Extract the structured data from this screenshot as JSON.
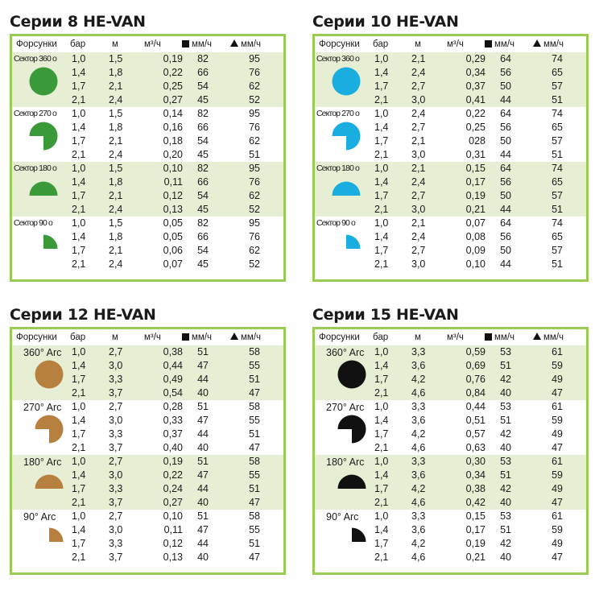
{
  "headers": {
    "nozzles": "Форсунки",
    "bar": "бар",
    "m": "м",
    "flow": "м³/ч",
    "precip_square": "мм/ч",
    "precip_triangle": "мм/ч"
  },
  "panels": [
    {
      "title": "Серии 8 HE-VAN",
      "color": "#3a9a3a",
      "label_style": "condensed",
      "groups": [
        {
          "label": "Сектор 360 o",
          "shape": "full",
          "rows": [
            [
              "1,0",
              "1,5",
              "0,19",
              "82",
              "95"
            ],
            [
              "1,4",
              "1,8",
              "0,22",
              "66",
              "76"
            ],
            [
              "1,7",
              "2,1",
              "0,25",
              "54",
              "62"
            ],
            [
              "2,1",
              "2,4",
              "0,27",
              "45",
              "52"
            ]
          ]
        },
        {
          "label": "Сектор 270 o",
          "shape": "three-quarter",
          "rows": [
            [
              "1,0",
              "1,5",
              "0,14",
              "82",
              "95"
            ],
            [
              "1,4",
              "1,8",
              "0,16",
              "66",
              "76"
            ],
            [
              "1,7",
              "2,1",
              "0,18",
              "54",
              "62"
            ],
            [
              "2,1",
              "2,4",
              "0,20",
              "45",
              "51"
            ]
          ]
        },
        {
          "label": "Сектор 180 o",
          "shape": "half",
          "rows": [
            [
              "1,0",
              "1,5",
              "0,10",
              "82",
              "95"
            ],
            [
              "1,4",
              "1,8",
              "0,11",
              "66",
              "76"
            ],
            [
              "1,7",
              "2,1",
              "0,12",
              "54",
              "62"
            ],
            [
              "2,1",
              "2,4",
              "0,13",
              "45",
              "52"
            ]
          ]
        },
        {
          "label": "Сектор 90 o",
          "shape": "quarter",
          "rows": [
            [
              "1,0",
              "1,5",
              "0,05",
              "82",
              "95"
            ],
            [
              "1,4",
              "1,8",
              "0,05",
              "66",
              "76"
            ],
            [
              "1,7",
              "2,1",
              "0,06",
              "54",
              "62"
            ],
            [
              "2,1",
              "2,4",
              "0,07",
              "45",
              "52"
            ]
          ]
        }
      ]
    },
    {
      "title": "Серии 10 HE-VAN",
      "color": "#1aaee0",
      "label_style": "condensed",
      "groups": [
        {
          "label": "Сектор 360 o",
          "shape": "full",
          "rows": [
            [
              "1,0",
              "2,1",
              "0,29",
              "64",
              "74"
            ],
            [
              "1,4",
              "2,4",
              "0,34",
              "56",
              "65"
            ],
            [
              "1,7",
              "2,7",
              "0,37",
              "50",
              "57"
            ],
            [
              "2,1",
              "3,0",
              "0,41",
              "44",
              "51"
            ]
          ]
        },
        {
          "label": "Сектор 270 o",
          "shape": "three-quarter",
          "rows": [
            [
              "1,0",
              "2,4",
              "0,22",
              "64",
              "74"
            ],
            [
              "1,4",
              "2,7",
              "0,25",
              "56",
              "65"
            ],
            [
              "1,7",
              "2,1",
              "028",
              "50",
              "57"
            ],
            [
              "2,1",
              "3,0",
              "0,31",
              "44",
              "51"
            ]
          ]
        },
        {
          "label": "Сектор 180 o",
          "shape": "half",
          "rows": [
            [
              "1,0",
              "2,1",
              "0,15",
              "64",
              "74"
            ],
            [
              "1,4",
              "2,4",
              "0,17",
              "56",
              "65"
            ],
            [
              "1,7",
              "2,7",
              "0,19",
              "50",
              "57"
            ],
            [
              "2,1",
              "3,0",
              "0,21",
              "44",
              "51"
            ]
          ]
        },
        {
          "label": "Сектор 90 o",
          "shape": "quarter",
          "rows": [
            [
              "1,0",
              "2,1",
              "0,07",
              "64",
              "74"
            ],
            [
              "1,4",
              "2,4",
              "0,08",
              "56",
              "65"
            ],
            [
              "1,7",
              "2,7",
              "0,09",
              "50",
              "57"
            ],
            [
              "2,1",
              "3,0",
              "0,10",
              "44",
              "51"
            ]
          ]
        }
      ]
    },
    {
      "title": "Серии 12 HE-VAN",
      "color": "#b8803f",
      "label_style": "arc",
      "groups": [
        {
          "label": "360° Arc",
          "shape": "full",
          "rows": [
            [
              "1,0",
              "2,7",
              "0,38",
              "51",
              "58"
            ],
            [
              "1,4",
              "3,0",
              "0,44",
              "47",
              "55"
            ],
            [
              "1,7",
              "3,3",
              "0,49",
              "44",
              "51"
            ],
            [
              "2,1",
              "3,7",
              "0,54",
              "40",
              "47"
            ]
          ]
        },
        {
          "label": "270° Arc",
          "shape": "three-quarter",
          "rows": [
            [
              "1,0",
              "2,7",
              "0,28",
              "51",
              "58"
            ],
            [
              "1,4",
              "3,0",
              "0,33",
              "47",
              "55"
            ],
            [
              "1,7",
              "3,3",
              "0,37",
              "44",
              "51"
            ],
            [
              "2,1",
              "3,7",
              "0,40",
              "40",
              "47"
            ]
          ]
        },
        {
          "label": "180° Arc",
          "shape": "half",
          "rows": [
            [
              "1,0",
              "2,7",
              "0,19",
              "51",
              "58"
            ],
            [
              "1,4",
              "3,0",
              "0,22",
              "47",
              "55"
            ],
            [
              "1,7",
              "3,3",
              "0,24",
              "44",
              "51"
            ],
            [
              "2,1",
              "3,7",
              "0,27",
              "40",
              "47"
            ]
          ]
        },
        {
          "label": "90° Arc",
          "shape": "quarter",
          "rows": [
            [
              "1,0",
              "2,7",
              "0,10",
              "51",
              "58"
            ],
            [
              "1,4",
              "3,0",
              "0,11",
              "47",
              "55"
            ],
            [
              "1,7",
              "3,3",
              "0,12",
              "44",
              "51"
            ],
            [
              "2,1",
              "3,7",
              "0,13",
              "40",
              "47"
            ]
          ]
        }
      ]
    },
    {
      "title": "Серии 15 HE-VAN",
      "color": "#111111",
      "label_style": "arc",
      "groups": [
        {
          "label": "360° Arc",
          "shape": "full",
          "rows": [
            [
              "1,0",
              "3,3",
              "0,59",
              "53",
              "61"
            ],
            [
              "1,4",
              "3,6",
              "0,69",
              "51",
              "59"
            ],
            [
              "1,7",
              "4,2",
              "0,76",
              "42",
              "49"
            ],
            [
              "2,1",
              "4,6",
              "0,84",
              "40",
              "47"
            ]
          ]
        },
        {
          "label": "270° Arc",
          "shape": "three-quarter",
          "rows": [
            [
              "1,0",
              "3,3",
              "0,44",
              "53",
              "61"
            ],
            [
              "1,4",
              "3,6",
              "0,51",
              "51",
              "59"
            ],
            [
              "1,7",
              "4,2",
              "0,57",
              "42",
              "49"
            ],
            [
              "2,1",
              "4,6",
              "0,63",
              "40",
              "47"
            ]
          ]
        },
        {
          "label": "180° Arc",
          "shape": "half",
          "rows": [
            [
              "1,0",
              "3,3",
              "0,30",
              "53",
              "61"
            ],
            [
              "1,4",
              "3,6",
              "0,34",
              "51",
              "59"
            ],
            [
              "1,7",
              "4,2",
              "0,38",
              "42",
              "49"
            ],
            [
              "2,1",
              "4,6",
              "0,42",
              "40",
              "47"
            ]
          ]
        },
        {
          "label": "90° Arc",
          "shape": "quarter",
          "rows": [
            [
              "1,0",
              "3,3",
              "0,15",
              "53",
              "61"
            ],
            [
              "1,4",
              "3,6",
              "0,17",
              "51",
              "59"
            ],
            [
              "1,7",
              "4,2",
              "0,19",
              "42",
              "49"
            ],
            [
              "2,1",
              "4,6",
              "0,21",
              "40",
              "47"
            ]
          ]
        }
      ]
    }
  ]
}
